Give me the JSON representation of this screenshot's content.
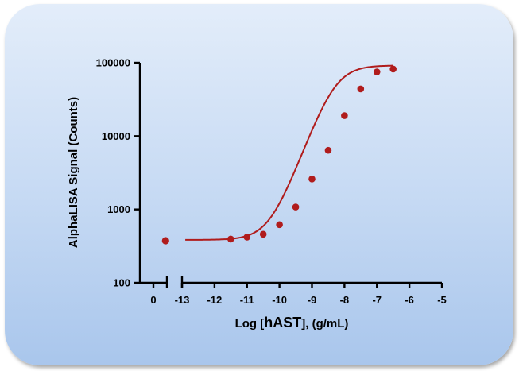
{
  "chart_data": {
    "type": "scatter",
    "xlabel": {
      "prefix": "Log [",
      "bold_part": "hAST",
      "suffix": "], (g/mL)"
    },
    "ylabel": "AlphaLISA Signal (Counts)",
    "y_scale": "log",
    "ylim": [
      100,
      100000
    ],
    "y_ticks": [
      "100",
      "1000",
      "10000",
      "100000"
    ],
    "x_break_segment": {
      "range": [
        -0.5,
        0.5
      ],
      "ticks": [
        "0"
      ]
    },
    "x_main_segment": {
      "range": [
        -13,
        -5
      ],
      "ticks": [
        "-13",
        "-12",
        "-11",
        "-10",
        "-9",
        "-8",
        "-7",
        "-6",
        "-5"
      ]
    },
    "colors": {
      "series": "#b01c1c",
      "axis": "#000000"
    },
    "series": [
      {
        "zero_point": {
          "x": 0.45,
          "y": 375
        },
        "points": [
          {
            "x": -11.5,
            "y": 395
          },
          {
            "x": -11.0,
            "y": 420
          },
          {
            "x": -10.5,
            "y": 460
          },
          {
            "x": -10.0,
            "y": 620
          },
          {
            "x": -9.5,
            "y": 1080
          },
          {
            "x": -9.0,
            "y": 2600
          },
          {
            "x": -8.5,
            "y": 6400
          },
          {
            "x": -8.0,
            "y": 19000
          },
          {
            "x": -7.5,
            "y": 44000
          },
          {
            "x": -7.0,
            "y": 75000
          },
          {
            "x": -6.5,
            "y": 82000
          }
        ],
        "fit": {
          "bottom": 385,
          "top": 92000,
          "logEC50": -8.3,
          "hill": 1.2,
          "x_range": [
            -12.9,
            -6.5
          ]
        }
      }
    ]
  }
}
